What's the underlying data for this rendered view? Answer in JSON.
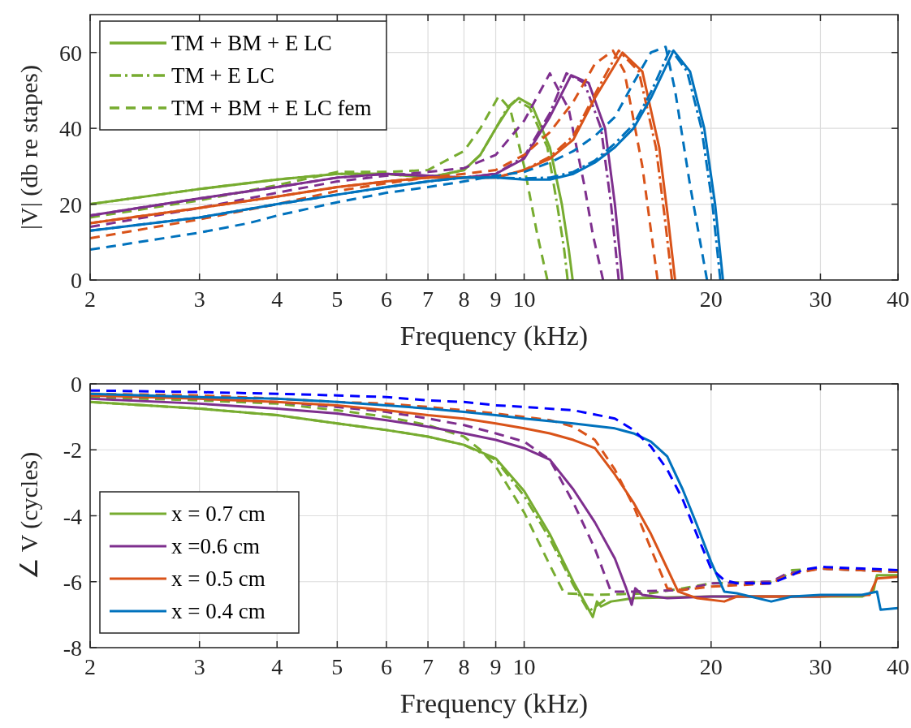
{
  "chart_data": [
    {
      "type": "line",
      "xlabel": "Frequency (kHz)",
      "ylabel": "|V| (db re stapes)",
      "log": "x",
      "grid": true,
      "legend": "top left",
      "xlim": [
        2,
        40
      ],
      "xticks": [
        2,
        3,
        4,
        5,
        6,
        7,
        8,
        9,
        10,
        20,
        30,
        40
      ],
      "ylim": [
        0,
        70
      ],
      "yticks": [
        0,
        20,
        40,
        60
      ],
      "series": [
        {
          "name": "TM + BM + E LC",
          "color": "#77ac30",
          "line_style": "solid",
          "x": [
            2,
            3,
            4,
            5,
            6,
            7,
            8,
            8.5,
            9,
            9.5,
            9.8,
            10.3,
            11,
            11.5,
            11.8,
            11.97
          ],
          "values": [
            20,
            24,
            26.5,
            28,
            28,
            27,
            29,
            33,
            40,
            46,
            48,
            46,
            35,
            20,
            8,
            0
          ]
        },
        {
          "name": "TM + E LC",
          "color": "#77ac30",
          "line_style": "dashdot",
          "x": [
            2,
            3,
            4,
            5,
            6,
            7,
            8,
            8.5,
            9,
            9.4,
            9.7,
            10.2,
            10.9,
            11.3,
            11.6,
            11.75
          ],
          "values": [
            20,
            24,
            26.5,
            28,
            28,
            27,
            29,
            33,
            40,
            45.5,
            47.5,
            45.5,
            35,
            20,
            8,
            0
          ]
        },
        {
          "name": "TM + BM + E LC fem",
          "color": "#77ac30",
          "line_style": "dashed",
          "x": [
            2,
            3,
            4,
            5,
            6,
            7,
            8,
            8.5,
            9.1,
            9.5,
            10,
            10.5,
            10.9
          ],
          "values": [
            16.5,
            21,
            25,
            28.5,
            28.5,
            29,
            34,
            40,
            48.5,
            45,
            30,
            12,
            0
          ]
        },
        {
          "color": "#7e2f8e",
          "line_style": "solid",
          "x": [
            2,
            3,
            4,
            5,
            6,
            7,
            8,
            9,
            10,
            11,
            11.9,
            12.7,
            13.5,
            14,
            14.4
          ],
          "values": [
            17,
            21.5,
            24.5,
            27,
            28,
            27.5,
            27,
            28,
            32,
            43,
            54,
            52,
            40,
            20,
            0
          ]
        },
        {
          "color": "#7e2f8e",
          "line_style": "dashdot",
          "x": [
            2,
            3,
            4,
            5,
            6,
            7,
            8,
            9,
            10,
            11,
            11.7,
            12.5,
            13.3,
            13.8,
            14.2
          ],
          "values": [
            17,
            21.5,
            24.5,
            27,
            28,
            27.5,
            27,
            28,
            32.5,
            44,
            54.5,
            52,
            40,
            20,
            0
          ]
        },
        {
          "color": "#7e2f8e",
          "line_style": "dashed",
          "x": [
            2,
            3,
            4,
            5,
            6,
            7,
            8,
            9,
            10,
            11,
            11.8,
            12.5,
            12.9,
            13.4
          ],
          "values": [
            14,
            19,
            23,
            26,
            27.5,
            28.5,
            29.5,
            33,
            42,
            54.5,
            45,
            25,
            12,
            0
          ]
        },
        {
          "color": "#d95319",
          "line_style": "solid",
          "x": [
            2,
            3,
            4,
            5,
            6,
            7,
            8,
            9,
            10,
            11,
            12,
            13,
            14.4,
            15.5,
            16.5,
            17,
            17.5
          ],
          "values": [
            15,
            19,
            22,
            24.5,
            26,
            27,
            27,
            27,
            29,
            32,
            37,
            48,
            60,
            55,
            35,
            18,
            0
          ]
        },
        {
          "color": "#d95319",
          "line_style": "dashdot",
          "x": [
            2,
            3,
            4,
            5,
            6,
            7,
            8,
            9,
            10,
            11,
            12,
            13,
            14.2,
            15.3,
            16.3,
            16.8,
            17.3
          ],
          "values": [
            15,
            19,
            22,
            24.5,
            26,
            27,
            27,
            27,
            29,
            32.5,
            38,
            49,
            60.5,
            55,
            35,
            18,
            0
          ]
        },
        {
          "color": "#d95319",
          "line_style": "dashed",
          "x": [
            2,
            3,
            4,
            5,
            6,
            7,
            8,
            9,
            10,
            11,
            12,
            13,
            13.9,
            14.5,
            15.5,
            16.4
          ],
          "values": [
            11,
            16,
            20,
            23.5,
            25.5,
            27,
            28,
            29,
            33,
            39,
            47,
            57,
            60.5,
            55,
            30,
            0
          ]
        },
        {
          "color": "#0072bd",
          "line_style": "solid",
          "x": [
            2,
            3,
            4,
            5,
            6,
            7,
            8,
            9,
            10,
            11,
            12,
            13,
            14,
            15,
            16,
            17.4,
            18.5,
            19.5,
            20.3,
            20.9
          ],
          "values": [
            13,
            16.5,
            20,
            22.5,
            24.5,
            26,
            27,
            27,
            26.5,
            26.5,
            28,
            31,
            35,
            40,
            48,
            60.5,
            55,
            40,
            20,
            0
          ]
        },
        {
          "color": "#0072bd",
          "line_style": "dashdot",
          "x": [
            2,
            3,
            4,
            5,
            6,
            7,
            8,
            9,
            10,
            11,
            12,
            13,
            14,
            15,
            16,
            17.2,
            18.3,
            19.3,
            20.1,
            20.7
          ],
          "values": [
            13,
            16.5,
            20,
            22.5,
            24.5,
            26,
            27,
            27,
            26.8,
            27,
            28.5,
            31.5,
            36,
            41,
            49.5,
            61,
            55,
            40,
            20,
            0
          ]
        },
        {
          "color": "#0072bd",
          "line_style": "dashed",
          "x": [
            2,
            3,
            3.6,
            3.8,
            4,
            5,
            6,
            7,
            8,
            9,
            10,
            11,
            12,
            13,
            14,
            15,
            16,
            16.9,
            17.5,
            18.5,
            19.7
          ],
          "values": [
            8,
            12.5,
            15,
            16,
            17,
            20.5,
            23,
            24.5,
            26,
            27.5,
            28.5,
            31,
            34,
            38,
            43,
            52,
            60,
            61.5,
            50,
            25,
            0
          ]
        }
      ]
    },
    {
      "type": "line",
      "xlabel": "Frequency (kHz)",
      "ylabel": "∠ V (cycles)",
      "log": "x",
      "grid": true,
      "legend": "bottom left",
      "xlim": [
        2,
        40
      ],
      "xticks": [
        2,
        3,
        4,
        5,
        6,
        7,
        8,
        9,
        10,
        20,
        30,
        40
      ],
      "ylim": [
        -8,
        0
      ],
      "yticks": [
        -8,
        -6,
        -4,
        -2,
        0
      ],
      "series": [
        {
          "name": "x = 0.7 cm",
          "color": "#77ac30",
          "line_style": "solid",
          "x": [
            2,
            3,
            4,
            5,
            6,
            7,
            8,
            9,
            10,
            11,
            12,
            12.9,
            13.1,
            13.3,
            13.8,
            15,
            20,
            30,
            35,
            36.5,
            37,
            40
          ],
          "values": [
            -0.55,
            -0.75,
            -0.95,
            -1.2,
            -1.4,
            -1.6,
            -1.85,
            -2.26,
            -3.25,
            -4.56,
            -6.0,
            -7.07,
            -6.6,
            -6.75,
            -6.6,
            -6.5,
            -6.45,
            -6.45,
            -6.45,
            -6.3,
            -5.8,
            -5.8
          ]
        },
        {
          "color": "#77ac30",
          "line_style": "dashdot",
          "x": [
            2,
            3,
            4,
            5,
            6,
            7,
            8,
            9,
            10,
            11,
            12,
            12.7,
            13.5
          ],
          "values": [
            -0.55,
            -0.75,
            -0.95,
            -1.2,
            -1.4,
            -1.6,
            -1.85,
            -2.3,
            -3.4,
            -4.7,
            -6.1,
            -6.9,
            -6.55
          ]
        },
        {
          "color": "#77ac30",
          "line_style": "dashed",
          "x": [
            2,
            3,
            4,
            5,
            6,
            7,
            8,
            8.5,
            9,
            10,
            11,
            11.6,
            13,
            16,
            18,
            20,
            25,
            26,
            27,
            30,
            35,
            40
          ],
          "values": [
            -0.4,
            -0.5,
            -0.6,
            -0.8,
            -1.0,
            -1.25,
            -1.6,
            -2.0,
            -2.5,
            -3.9,
            -5.5,
            -6.35,
            -6.4,
            -6.35,
            -6.2,
            -6.05,
            -6.0,
            -5.9,
            -5.65,
            -5.6,
            -5.65,
            -5.7
          ]
        },
        {
          "name": "x =0.6 cm",
          "color": "#7e2f8e",
          "line_style": "solid",
          "x": [
            2,
            3,
            4,
            5,
            6,
            7,
            8,
            9,
            10,
            11,
            12,
            13,
            14,
            14.6,
            14.9,
            15.1,
            15.5,
            17,
            20,
            30
          ],
          "values": [
            -0.45,
            -0.6,
            -0.75,
            -0.9,
            -1.1,
            -1.3,
            -1.5,
            -1.7,
            -1.95,
            -2.3,
            -3.2,
            -4.2,
            -5.3,
            -6.2,
            -6.7,
            -6.2,
            -6.4,
            -6.5,
            -6.45,
            -6.45
          ]
        },
        {
          "color": "#7e2f8e",
          "line_style": "dashed",
          "x": [
            2,
            3,
            4,
            5,
            6,
            7,
            8,
            9,
            10,
            11,
            12,
            13,
            13.8,
            15,
            18,
            20,
            25,
            26.5,
            30,
            40
          ],
          "values": [
            -0.35,
            -0.45,
            -0.55,
            -0.7,
            -0.85,
            -1.05,
            -1.25,
            -1.5,
            -1.75,
            -2.3,
            -3.6,
            -5.0,
            -6.3,
            -6.3,
            -6.25,
            -6.05,
            -6.0,
            -5.75,
            -5.6,
            -5.7
          ]
        },
        {
          "name": "x = 0.5 cm",
          "color": "#d95319",
          "line_style": "solid",
          "x": [
            2,
            3,
            4,
            5,
            6,
            7,
            8,
            9,
            10,
            11,
            12,
            13,
            14,
            15,
            16,
            17,
            17.7,
            19,
            21,
            22,
            30,
            36,
            37,
            40
          ],
          "values": [
            -0.35,
            -0.45,
            -0.55,
            -0.65,
            -0.8,
            -0.95,
            -1.05,
            -1.2,
            -1.35,
            -1.5,
            -1.7,
            -1.95,
            -2.75,
            -3.6,
            -4.55,
            -5.6,
            -6.3,
            -6.5,
            -6.6,
            -6.45,
            -6.45,
            -6.4,
            -5.9,
            -5.85
          ]
        },
        {
          "color": "#d95319",
          "line_style": "dashed",
          "x": [
            2,
            3,
            4,
            5,
            6,
            7,
            8,
            9,
            10,
            11,
            12,
            13,
            14,
            15,
            16,
            17,
            18,
            20,
            25,
            26.5,
            30,
            40
          ],
          "values": [
            -0.3,
            -0.35,
            -0.45,
            -0.55,
            -0.6,
            -0.7,
            -0.8,
            -0.9,
            -1.0,
            -1.1,
            -1.3,
            -1.7,
            -2.6,
            -3.7,
            -5.0,
            -6.2,
            -6.25,
            -6.15,
            -6.05,
            -5.8,
            -5.6,
            -5.7
          ]
        },
        {
          "name": "x = 0.4 cm",
          "color": "#0072bd",
          "line_style": "solid",
          "x": [
            2,
            3,
            4,
            5,
            6,
            7,
            8,
            9,
            10,
            12,
            14,
            15,
            16,
            17,
            18,
            19,
            20,
            21,
            22,
            25,
            27,
            30,
            35,
            37,
            37.5,
            40
          ],
          "values": [
            -0.3,
            -0.4,
            -0.45,
            -0.55,
            -0.65,
            -0.75,
            -0.85,
            -0.95,
            -1.05,
            -1.2,
            -1.35,
            -1.5,
            -1.75,
            -2.2,
            -3.2,
            -4.3,
            -5.4,
            -6.3,
            -6.35,
            -6.6,
            -6.45,
            -6.4,
            -6.4,
            -6.3,
            -6.85,
            -6.8
          ]
        },
        {
          "color": "#0000ff",
          "line_style": "dashed",
          "x": [
            2,
            3,
            4,
            5,
            6,
            7,
            8,
            9,
            10,
            12,
            14,
            15,
            16,
            17,
            18,
            19,
            20,
            21,
            22,
            25,
            27,
            28,
            30,
            35,
            40
          ],
          "values": [
            -0.2,
            -0.25,
            -0.3,
            -0.35,
            -0.4,
            -0.5,
            -0.55,
            -0.65,
            -0.7,
            -0.8,
            -1.05,
            -1.4,
            -1.9,
            -2.6,
            -3.5,
            -4.6,
            -5.6,
            -5.95,
            -6.05,
            -6.05,
            -5.8,
            -5.65,
            -5.55,
            -5.6,
            -5.65
          ]
        }
      ]
    }
  ]
}
